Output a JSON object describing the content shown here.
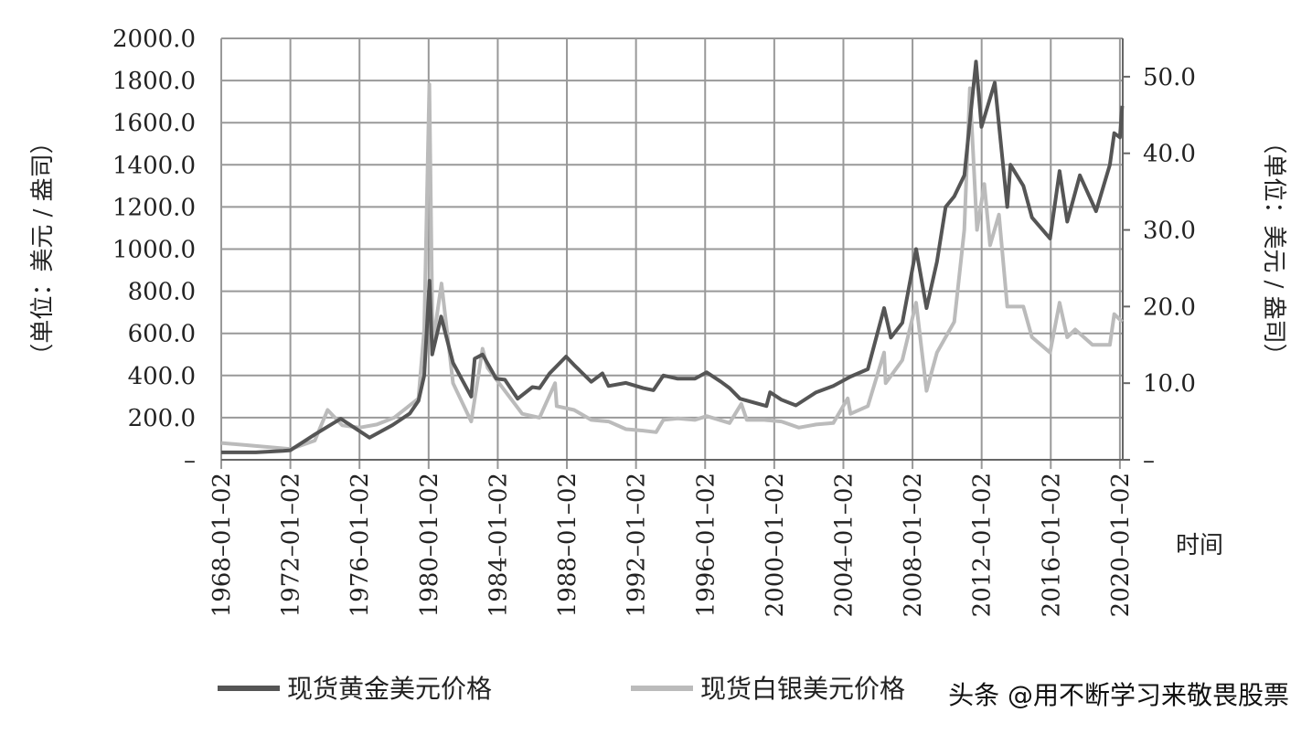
{
  "chart_data": {
    "type": "line",
    "y_label": "（单位：美元 / 盎司）",
    "y2_label": "（单位：美元 / 盎司）",
    "x_label": "时间",
    "watermark": "头条 @用不断学习来敬畏股票",
    "grid": true,
    "legend": "bottom",
    "xlim": [
      "1968-01-02",
      "2020-03-02"
    ],
    "xticks": [
      {
        "value": "1968-01-02",
        "label": "1968–01–02"
      },
      {
        "value": "1972-01-02",
        "label": "1972–01–02"
      },
      {
        "value": "1976-01-02",
        "label": "1976–01–02"
      },
      {
        "value": "1980-01-02",
        "label": "1980–01–02"
      },
      {
        "value": "1984-01-02",
        "label": "1984–01–02"
      },
      {
        "value": "1988-01-02",
        "label": "1988–01–02"
      },
      {
        "value": "1992-01-02",
        "label": "1992–01–02"
      },
      {
        "value": "1996-01-02",
        "label": "1996–01–02"
      },
      {
        "value": "2000-01-02",
        "label": "2000–01–02"
      },
      {
        "value": "2004-01-02",
        "label": "2004–01–02"
      },
      {
        "value": "2008-01-02",
        "label": "2008–01–02"
      },
      {
        "value": "2012-01-02",
        "label": "2012–01–02"
      },
      {
        "value": "2016-01-02",
        "label": "2016–01–02"
      },
      {
        "value": "2020-01-02",
        "label": "2020–01–02"
      }
    ],
    "ylim": [
      0,
      2000
    ],
    "yticks": [
      {
        "value": 0,
        "label": "–"
      },
      {
        "value": 200,
        "label": "200.0"
      },
      {
        "value": 400,
        "label": "400.0"
      },
      {
        "value": 600,
        "label": "600.0"
      },
      {
        "value": 800,
        "label": "800.0"
      },
      {
        "value": 1000,
        "label": "1000.0"
      },
      {
        "value": 1200,
        "label": "1200.0"
      },
      {
        "value": 1400,
        "label": "1400.0"
      },
      {
        "value": 1600,
        "label": "1600.0"
      },
      {
        "value": 1800,
        "label": "1800.0"
      },
      {
        "value": 2000,
        "label": "2000.0"
      }
    ],
    "y2lim": [
      0,
      55
    ],
    "y2ticks": [
      {
        "value": 0,
        "label": "–"
      },
      {
        "value": 10,
        "label": "10.0"
      },
      {
        "value": 20,
        "label": "20.0"
      },
      {
        "value": 30,
        "label": "30.0"
      },
      {
        "value": 40,
        "label": "40.0"
      },
      {
        "value": 50,
        "label": "50.0"
      }
    ],
    "series": [
      {
        "name": "现货黄金美元价格",
        "color": "#555555",
        "axis": "y",
        "x": [
          "1968-01-02",
          "1970-01-02",
          "1971-08-02",
          "1972-01-02",
          "1973-06-01",
          "1974-12-02",
          "1976-08-02",
          "1977-12-01",
          "1978-12-01",
          "1979-06-01",
          "1979-10-01",
          "1980-01-21",
          "1980-03-17",
          "1980-09-22",
          "1981-06-01",
          "1982-06-21",
          "1982-09-01",
          "1983-02-15",
          "1983-12-01",
          "1984-06-01",
          "1985-02-25",
          "1986-01-02",
          "1986-06-02",
          "1987-01-02",
          "1987-12-14",
          "1988-06-01",
          "1989-06-01",
          "1990-01-22",
          "1990-06-01",
          "1991-06-03",
          "1992-06-01",
          "1993-01-04",
          "1993-08-02",
          "1994-06-01",
          "1995-06-01",
          "1996-02-02",
          "1996-12-02",
          "1997-06-02",
          "1998-01-09",
          "1999-07-20",
          "1999-10-05",
          "2000-06-01",
          "2001-04-02",
          "2002-06-03",
          "2003-06-02",
          "2004-06-01",
          "2005-06-01",
          "2006-05-12",
          "2006-10-02",
          "2007-06-01",
          "2008-03-17",
          "2008-10-24",
          "2009-06-01",
          "2009-12-02",
          "2010-06-01",
          "2011-01-03",
          "2011-09-05",
          "2011-12-29",
          "2012-10-04",
          "2013-06-27",
          "2013-09-02",
          "2014-06-02",
          "2014-12-01",
          "2015-12-17",
          "2016-07-06",
          "2016-12-15",
          "2017-09-08",
          "2018-08-16",
          "2019-06-03",
          "2019-09-04",
          "2020-01-02",
          "2020-02-20"
        ],
        "values": [
          35,
          35,
          42,
          45,
          120,
          195,
          105,
          165,
          220,
          280,
          400,
          850,
          500,
          680,
          460,
          300,
          480,
          500,
          385,
          380,
          290,
          345,
          340,
          410,
          490,
          450,
          370,
          410,
          350,
          365,
          340,
          330,
          400,
          385,
          385,
          415,
          370,
          340,
          290,
          255,
          320,
          285,
          258,
          320,
          350,
          395,
          430,
          720,
          580,
          650,
          1000,
          720,
          940,
          1200,
          1250,
          1350,
          1890,
          1580,
          1790,
          1200,
          1400,
          1300,
          1150,
          1050,
          1370,
          1130,
          1350,
          1180,
          1400,
          1550,
          1530,
          1680
        ]
      },
      {
        "name": "现货白银美元价格",
        "color": "#bbbbbb",
        "axis": "y2",
        "x": [
          "1968-01-02",
          "1970-01-02",
          "1972-01-03",
          "1973-06-01",
          "1974-02-26",
          "1975-01-02",
          "1976-01-02",
          "1977-01-03",
          "1978-01-03",
          "1979-06-01",
          "1979-10-01",
          "1980-01-18",
          "1980-03-27",
          "1980-10-01",
          "1981-06-01",
          "1982-06-21",
          "1983-02-15",
          "1983-06-01",
          "1984-06-01",
          "1985-06-03",
          "1986-06-02",
          "1987-04-27",
          "1987-06-01",
          "1988-06-01",
          "1989-06-01",
          "1990-06-01",
          "1991-06-03",
          "1992-06-01",
          "1993-03-01",
          "1993-08-02",
          "1994-06-01",
          "1995-06-01",
          "1996-02-02",
          "1997-06-02",
          "1998-02-05",
          "1998-06-01",
          "1999-06-01",
          "2000-06-01",
          "2001-06-01",
          "2002-06-03",
          "2003-06-02",
          "2004-04-02",
          "2004-06-01",
          "2005-06-01",
          "2006-05-12",
          "2006-06-14",
          "2007-06-01",
          "2008-03-17",
          "2008-10-24",
          "2009-06-01",
          "2010-06-01",
          "2010-12-31",
          "2011-04-28",
          "2011-09-26",
          "2012-02-28",
          "2012-06-28",
          "2013-01-02",
          "2013-06-27",
          "2014-06-02",
          "2014-12-01",
          "2015-12-17",
          "2016-07-06",
          "2016-12-15",
          "2017-06-01",
          "2018-06-01",
          "2019-06-03",
          "2019-09-04",
          "2020-02-20"
        ],
        "values": [
          2.2,
          1.8,
          1.4,
          2.5,
          6.5,
          4.5,
          4.2,
          4.6,
          5.5,
          8,
          17,
          49,
          15,
          23,
          10,
          5,
          14.5,
          12,
          9,
          6,
          5.5,
          10,
          7,
          6.5,
          5.2,
          5,
          4,
          3.8,
          3.6,
          5.2,
          5.4,
          5.2,
          5.7,
          4.8,
          7.3,
          5.2,
          5.2,
          5,
          4.2,
          4.6,
          4.8,
          8,
          6,
          7,
          14,
          10,
          13,
          20.5,
          9,
          14,
          18,
          30,
          48.5,
          30,
          36,
          28,
          32,
          20,
          20,
          16,
          14,
          20.5,
          16,
          17,
          15,
          15,
          19,
          18
        ]
      }
    ]
  }
}
